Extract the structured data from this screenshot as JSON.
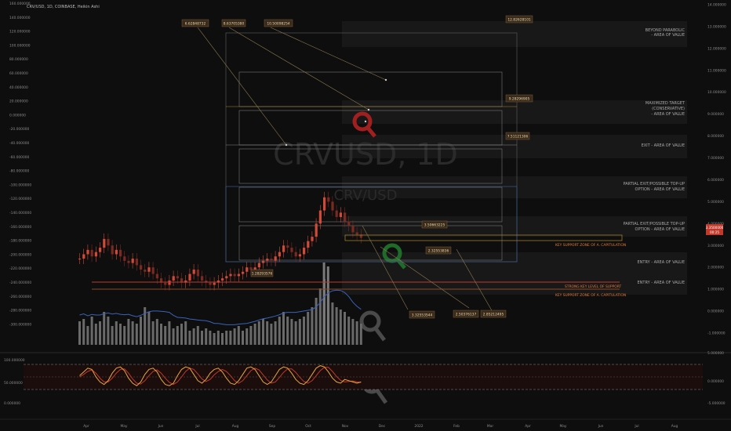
{
  "header": {
    "symbol_line": "CRV/USD, 1D, COINBASE, Heikin Ashi"
  },
  "watermark": {
    "big": "CRVUSD, 1D",
    "small": "CRV/USD"
  },
  "colors": {
    "background": "#0e0e0e",
    "up_candle": "#d04a3a",
    "down_candle": "#7a2a20",
    "volume": "#6a6a6a",
    "volume_ma": "#3a62b8",
    "stoch_k": "#e8a440",
    "stoch_d": "#c0392b",
    "support_line": "#c0392b",
    "annotation_box": "#3a2a1a",
    "zone_fill": "#1a1a1a",
    "logo_red": "#a02020",
    "logo_green": "#1f6b2a",
    "logo_gray": "#5a5a5a"
  },
  "left_axis": {
    "labels": [
      "160.000000",
      "140.000000",
      "120.000000",
      "100.000000",
      "80.000000",
      "60.000000",
      "40.000000",
      "20.000000",
      "0.000000",
      "-20.000000",
      "-40.000000",
      "-60.000000",
      "-80.000000",
      "-100.000000",
      "-120.000000",
      "-140.000000",
      "-160.000000",
      "-180.000000",
      "-200.000000",
      "-220.000000",
      "-240.000000",
      "-260.000000",
      "-280.000000",
      "-300.000000"
    ]
  },
  "right_axis": {
    "labels": [
      "14.000000",
      "13.000000",
      "12.000000",
      "11.000000",
      "10.000000",
      "9.000000",
      "8.000000",
      "7.000000",
      "6.000000",
      "5.000000",
      "4.000000",
      "3.000000",
      "2.000000",
      "1.000000",
      "0.000000",
      "-1.000000"
    ],
    "price_tag": "3.3500000",
    "price_tag_sub": "00:25"
  },
  "stoch_axis": {
    "left": [
      "100.000000",
      "50.000000",
      "0.000000"
    ],
    "right": [
      "5.000000",
      "0.000000",
      "-5.000000"
    ]
  },
  "x_axis": {
    "labels": [
      "Apr",
      "May",
      "Jun",
      "Jul",
      "Aug",
      "Sep",
      "Oct",
      "Nov",
      "Dec",
      "2022",
      "Feb",
      "Mar",
      "Apr",
      "May",
      "Jun",
      "Jul",
      "Aug"
    ]
  },
  "zones": [
    {
      "label_line1": "BEYOND PARABOLIC",
      "label_line2": "- AREA OF VALUE"
    },
    {
      "label_line1": "MAXIMIZED TARGET",
      "label_line2": "(CONSERVATIVE)",
      "label_line3": "- AREA OF VALUE"
    },
    {
      "label_line1": "EXIT - AREA OF VALUE"
    },
    {
      "label_line1": "PARTIAL EXIT/POSSIBLE TOP-UP",
      "label_line2": "OPTION - AREA OF VALUE"
    },
    {
      "label_line1": "PARTIAL EXIT/POSSIBLE TOP-UP",
      "label_line2": "OPTION - AREA OF VALUE"
    },
    {
      "label_line1": "ENTRY - AREA OF VALUE"
    },
    {
      "label_line1": "ENTRY - AREA OF VALUE"
    }
  ],
  "support_labels": {
    "key_upper": "KEY SUPPORT ZONE OF A. CAPITULATION",
    "strong": "STRONG KEY LEVEL OF SUPPORT",
    "key_lower": "KEY SUPPORT ZONE OF A. CAPITULATION"
  },
  "annotations": [
    {
      "text": "6.62848732"
    },
    {
      "text": "8.63705380"
    },
    {
      "text": "10.50098254"
    },
    {
      "text": "12.82628101"
    },
    {
      "text": "9.28296905"
    },
    {
      "text": "7.51121306"
    },
    {
      "text": "3.50663225"
    },
    {
      "text": "2.32553836"
    },
    {
      "text": "1.28293576"
    },
    {
      "text": "3.32553544"
    },
    {
      "text": "2.50376137"
    },
    {
      "text": "2.85212495"
    }
  ],
  "chart_data": {
    "type": "candlestick",
    "title": "CRV/USD, 1D, COINBASE, Heikin Ashi",
    "price_axis_range": [
      -1,
      14
    ],
    "price_series": {
      "name": "CRV/USD",
      "approx_close": [
        2.4,
        2.6,
        2.8,
        2.5,
        2.7,
        2.9,
        3.3,
        3.0,
        2.6,
        2.8,
        2.5,
        2.3,
        2.2,
        2.4,
        2.1,
        1.9,
        1.8,
        2.0,
        1.7,
        1.5,
        1.3,
        1.2,
        1.4,
        1.6,
        1.5,
        1.3,
        1.4,
        1.7,
        1.9,
        1.6,
        1.4,
        1.3,
        1.2,
        1.3,
        1.4,
        1.5,
        1.6,
        1.7,
        1.6,
        1.7,
        1.8,
        2.0,
        1.9,
        2.0,
        2.2,
        2.3,
        2.4,
        2.3,
        2.5,
        2.7,
        3.0,
        2.9,
        2.7,
        2.5,
        2.6,
        2.9,
        3.2,
        3.4,
        4.0,
        4.6,
        5.2,
        5.0,
        4.6,
        4.3,
        4.5,
        4.1,
        3.9,
        3.6,
        3.5,
        3.35
      ]
    },
    "volume_series": {
      "name": "Volume",
      "approx": [
        0.5,
        0.55,
        0.4,
        0.6,
        0.45,
        0.5,
        0.7,
        0.6,
        0.4,
        0.5,
        0.45,
        0.4,
        0.55,
        0.5,
        0.45,
        0.6,
        0.8,
        0.7,
        0.5,
        0.55,
        0.45,
        0.4,
        0.5,
        0.35,
        0.4,
        0.45,
        0.5,
        0.3,
        0.35,
        0.4,
        0.3,
        0.35,
        0.3,
        0.25,
        0.3,
        0.25,
        0.3,
        0.3,
        0.35,
        0.4,
        0.3,
        0.35,
        0.4,
        0.45,
        0.5,
        0.55,
        0.5,
        0.45,
        0.5,
        0.6,
        0.7,
        0.6,
        0.55,
        0.5,
        0.55,
        0.6,
        0.7,
        0.8,
        1.0,
        1.2,
        1.4,
        1.1,
        0.9,
        0.8,
        0.75,
        0.7,
        0.6,
        0.55,
        0.5,
        0.45
      ]
    },
    "stoch_rsi": {
      "k": [
        55,
        70,
        85,
        80,
        50,
        30,
        20,
        35,
        65,
        85,
        90,
        75,
        45,
        25,
        15,
        30,
        60,
        80,
        85,
        70,
        40,
        20,
        15,
        25,
        55,
        80,
        90,
        85,
        60,
        35,
        25,
        40,
        65,
        80,
        85,
        70,
        45,
        25,
        20,
        35,
        60,
        85,
        90,
        80,
        55,
        30,
        20,
        30,
        55,
        80,
        90,
        85,
        65,
        40,
        25,
        20,
        35,
        60,
        85,
        95,
        90,
        70,
        45,
        30,
        25,
        40,
        35,
        30,
        25,
        30
      ],
      "d": [
        50,
        60,
        72,
        78,
        65,
        45,
        30,
        30,
        45,
        65,
        80,
        82,
        65,
        42,
        25,
        22,
        35,
        55,
        72,
        78,
        65,
        45,
        28,
        20,
        30,
        50,
        72,
        85,
        80,
        62,
        42,
        32,
        40,
        58,
        72,
        80,
        72,
        55,
        35,
        25,
        35,
        55,
        75,
        85,
        78,
        58,
        38,
        25,
        30,
        48,
        68,
        82,
        82,
        68,
        48,
        32,
        25,
        35,
        55,
        75,
        88,
        88,
        72,
        52,
        36,
        30,
        32,
        34,
        30,
        28
      ],
      "upper_band": 80,
      "lower_band": 20,
      "range": [
        0,
        100
      ]
    },
    "horizontal_levels": [
      {
        "label": "STRONG KEY LEVEL OF SUPPORT",
        "value": 1.45
      },
      {
        "label": "KEY SUPPORT ZONE OF A. CAPITULATION",
        "value": 1.05
      }
    ],
    "take_profit_targets": [
      12.82628101,
      10.50098254,
      9.28296905,
      8.6370538,
      7.51121306,
      6.62848732,
      3.50663225,
      2.85212495,
      2.50376137,
      2.32553836,
      1.28293576
    ]
  }
}
